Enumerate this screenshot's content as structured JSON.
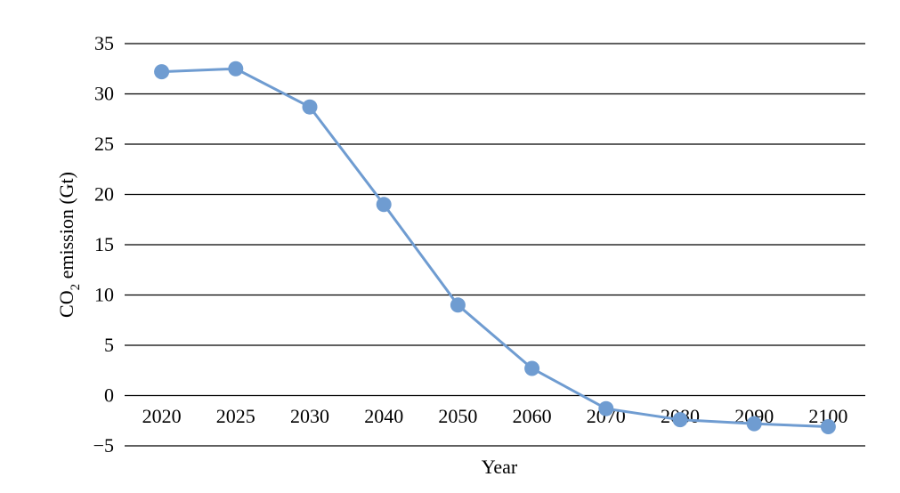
{
  "chart_data": {
    "type": "line",
    "title": "",
    "xlabel": "Year",
    "ylabel": {
      "main": "CO",
      "sub": "2",
      "rest": " emission (Gt)"
    },
    "categories": [
      "2020",
      "2025",
      "2030",
      "2040",
      "2050",
      "2060",
      "2070",
      "2080",
      "2090",
      "2100"
    ],
    "series": [
      {
        "values": [
          32.2,
          32.5,
          28.7,
          19.0,
          9.0,
          2.7,
          -1.3,
          -2.4,
          -2.8,
          -3.1
        ]
      }
    ],
    "ylim": [
      -5,
      35
    ],
    "yticks": [
      -5,
      0,
      5,
      10,
      15,
      20,
      25,
      30,
      35
    ],
    "ytick_labels": [
      "−5",
      "0",
      "5",
      "10",
      "15",
      "20",
      "25",
      "30",
      "35"
    ],
    "grid": true,
    "legend": "none",
    "color": "#6f9cd1"
  }
}
